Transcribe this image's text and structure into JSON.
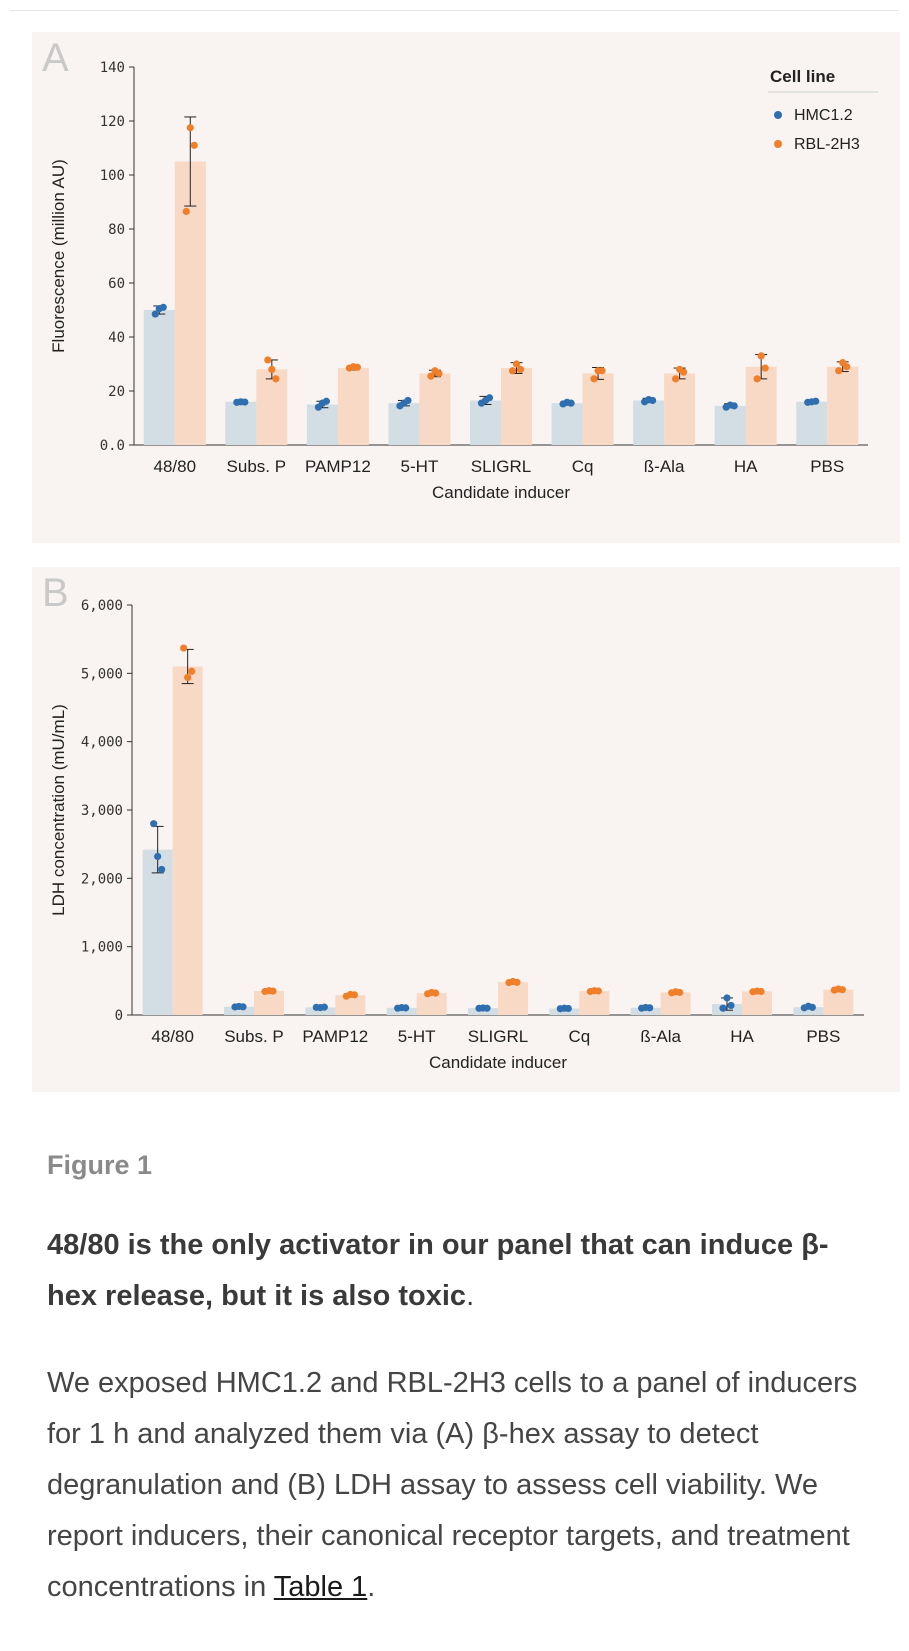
{
  "figure": {
    "label": "Figure 1",
    "title": "48/80 is the only activator in our panel that can induce β-hex release, but it is also toxic",
    "title_end": ".",
    "body": "We exposed HMC1.2 and RBL-2H3 cells to a panel of inducers for 1 h and analyzed them via (A) β-hex assay to detect degranulation and (B) LDH assay to assess cell viability. We report inducers, their canonical receptor targets, and treatment concentrations in ",
    "link_text": "Table 1",
    "body_end": "."
  },
  "colors": {
    "hmc_bar": "#d2dde4",
    "rbl_bar": "#f7d9c6",
    "hmc_point": "#2f6fb0",
    "rbl_point": "#f07f2a",
    "panel_bg": "#f9f4f1"
  },
  "chart_data": [
    {
      "panel_letter": "A",
      "type": "bar",
      "xlabel": "Candidate inducer",
      "ylabel": "Fluorescence (million AU)",
      "ylim": [
        0,
        140
      ],
      "yticks": [
        "0.0",
        "20",
        "40",
        "60",
        "80",
        "100",
        "120",
        "140"
      ],
      "grid": false,
      "legend": {
        "title": "Cell line",
        "position": "top-right"
      },
      "categories": [
        "48/80",
        "Subs. P",
        "PAMP12",
        "5-HT",
        "SLIGRL",
        "Cq",
        "ß-Ala",
        "HA",
        "PBS"
      ],
      "series": [
        {
          "name": "HMC1.2",
          "values": [
            50,
            16,
            15,
            15.5,
            16.5,
            15.5,
            16.5,
            14.5,
            16
          ],
          "error": [
            1.5,
            0.3,
            1.2,
            1.0,
            1.5,
            0.5,
            0.8,
            0.8,
            0.3
          ],
          "points": [
            [
              48.5,
              50.5,
              51
            ],
            [
              15.8,
              16,
              15.9
            ],
            [
              14,
              15.5,
              16.2
            ],
            [
              14.5,
              15.5,
              16.5
            ],
            [
              15.5,
              16.5,
              17.5
            ],
            [
              15.2,
              15.8,
              15.5
            ],
            [
              16,
              16.8,
              16.5
            ],
            [
              14,
              14.8,
              14.5
            ],
            [
              15.8,
              16,
              16.2
            ]
          ]
        },
        {
          "name": "RBL-2H3",
          "values": [
            105,
            28,
            28.5,
            26.5,
            28.5,
            26.5,
            26.5,
            29,
            29
          ],
          "error": [
            16.5,
            3.5,
            0.7,
            1.2,
            2.0,
            2.2,
            2.0,
            4.5,
            1.8
          ],
          "points": [
            [
              86.5,
              117.5,
              111
            ],
            [
              31.5,
              28,
              24.5
            ],
            [
              28.5,
              29,
              28.8
            ],
            [
              25.5,
              27.5,
              26.5
            ],
            [
              27.5,
              30,
              28
            ],
            [
              24.5,
              27.5,
              27.5
            ],
            [
              24.5,
              28,
              27
            ],
            [
              24.5,
              33,
              28.5
            ],
            [
              27.5,
              30.5,
              29
            ]
          ]
        }
      ]
    },
    {
      "panel_letter": "B",
      "type": "bar",
      "xlabel": "Candidate inducer",
      "ylabel": "LDH concentration (mU/mL)",
      "ylim": [
        0,
        6000
      ],
      "yticks": [
        "0",
        "1,000",
        "2,000",
        "3,000",
        "4,000",
        "5,000",
        "6,000"
      ],
      "grid": false,
      "categories": [
        "48/80",
        "Subs. P",
        "PAMP12",
        "5-HT",
        "SLIGRL",
        "Cq",
        "ß-Ala",
        "HA",
        "PBS"
      ],
      "series": [
        {
          "name": "HMC1.2",
          "values": [
            2420,
            120,
            110,
            105,
            100,
            95,
            105,
            160,
            115
          ],
          "error": [
            340,
            10,
            10,
            10,
            8,
            10,
            10,
            90,
            15
          ],
          "points": [
            [
              2800,
              2320,
              2130
            ],
            [
              118,
              125,
              120
            ],
            [
              112,
              108,
              115
            ],
            [
              100,
              108,
              104
            ],
            [
              98,
              102,
              100
            ],
            [
              92,
              100,
              95
            ],
            [
              100,
              110,
              105
            ],
            [
              100,
              250,
              140
            ],
            [
              105,
              128,
              112
            ]
          ]
        },
        {
          "name": "RBL-2H3",
          "values": [
            5100,
            350,
            290,
            320,
            480,
            350,
            330,
            345,
            370
          ],
          "error": [
            250,
            15,
            20,
            20,
            15,
            15,
            15,
            15,
            15
          ],
          "points": [
            [
              5370,
              4940,
              5030
            ],
            [
              345,
              355,
              350
            ],
            [
              275,
              300,
              295
            ],
            [
              310,
              330,
              320
            ],
            [
              475,
              490,
              478
            ],
            [
              345,
              355,
              352
            ],
            [
              325,
              340,
              330
            ],
            [
              340,
              350,
              345
            ],
            [
              365,
              380,
              370
            ]
          ]
        }
      ]
    }
  ]
}
